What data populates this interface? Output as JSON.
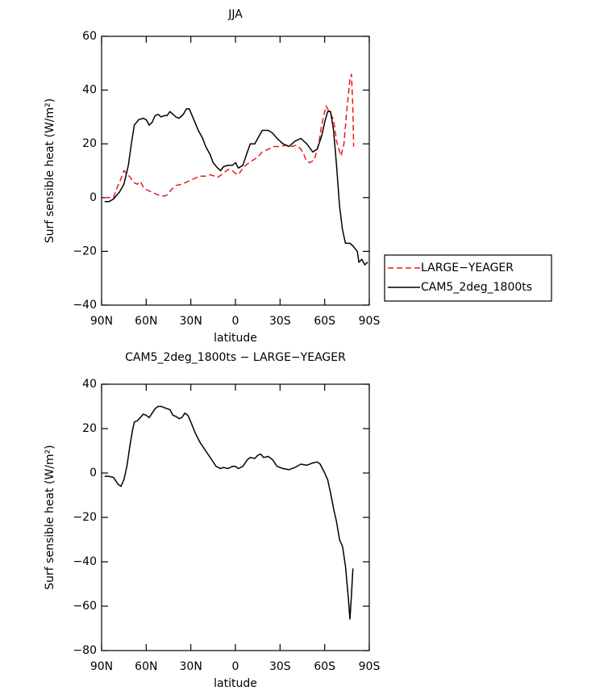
{
  "chart_data": [
    {
      "type": "line",
      "title": "JJA",
      "ylabel": "Surf sensible heat (W/m²)",
      "xlabel": "latitude",
      "xlim": [
        90,
        -90
      ],
      "xticks": [
        {
          "value": 90,
          "label": "90N"
        },
        {
          "value": 60,
          "label": "60N"
        },
        {
          "value": 30,
          "label": "30N"
        },
        0,
        {
          "value": -30,
          "label": "30S"
        },
        {
          "value": -60,
          "label": "60S"
        },
        {
          "value": -90,
          "label": "90S"
        }
      ],
      "ylim": [
        -40,
        60
      ],
      "yticks": [
        {
          "value": -40,
          "label": "−40"
        },
        {
          "value": -20,
          "label": "−20"
        },
        0,
        20,
        40,
        60
      ],
      "legend": "outside-right",
      "series": [
        {
          "name": "LARGE−YEAGER",
          "color": "#e8191c",
          "dashed": true,
          "x": [
            88,
            85,
            82,
            80,
            77,
            75,
            73,
            70,
            68,
            66,
            64,
            62,
            60,
            56,
            52,
            48,
            46,
            43,
            40,
            36,
            32,
            28,
            24,
            20,
            17,
            14,
            12,
            8,
            5,
            2,
            0,
            -2,
            -5,
            -8,
            -12,
            -15,
            -18,
            -22,
            -26,
            -30,
            -34,
            -38,
            -41,
            -44,
            -46,
            -48,
            -50,
            -53,
            -56,
            -58,
            -60,
            -61,
            -63,
            -66,
            -68,
            -71,
            -73,
            -75,
            -77,
            -78,
            -79,
            -79.5
          ],
          "values": [
            0,
            0,
            0,
            3,
            7,
            10,
            9,
            7,
            5.5,
            5,
            6,
            4,
            3,
            2,
            1,
            0.5,
            1,
            3,
            4.5,
            5,
            6,
            7,
            8,
            8,
            8.5,
            8,
            7.5,
            9,
            10.5,
            10,
            9,
            8.5,
            11,
            12.5,
            14,
            15,
            17,
            18,
            19,
            19,
            19.5,
            19,
            19.5,
            18,
            16,
            13.5,
            13,
            14,
            20,
            27,
            32,
            34,
            32,
            29,
            21,
            15.5,
            20,
            33,
            44,
            46,
            33,
            19
          ]
        },
        {
          "name": "CAM5_2deg_1800ts",
          "color": "#000000",
          "dashed": false,
          "x": [
            88,
            85,
            82,
            78,
            75,
            72,
            70,
            68,
            65,
            62,
            60,
            58,
            56,
            54,
            52,
            50,
            48,
            46,
            44,
            42,
            40,
            38,
            35,
            33,
            31,
            28,
            25,
            22,
            20,
            17,
            15,
            12,
            10,
            8,
            5,
            2,
            0,
            -2,
            -5,
            -8,
            -10,
            -13,
            -15,
            -18,
            -22,
            -25,
            -28,
            -32,
            -36,
            -40,
            -44,
            -48,
            -52,
            -55,
            -58,
            -60,
            -62,
            -64,
            -66,
            -68,
            -70,
            -72,
            -74,
            -77,
            -79,
            -82,
            -83,
            -85,
            -87,
            -89
          ],
          "values": [
            -1.5,
            -1.5,
            -0.5,
            2,
            5,
            12,
            20,
            27,
            29,
            29.5,
            29,
            27,
            28,
            30.5,
            31,
            30,
            30.5,
            30.5,
            32,
            31,
            30,
            29.5,
            31,
            33,
            33,
            29,
            25,
            22,
            19,
            16,
            13,
            11,
            10,
            11.5,
            12,
            12,
            13,
            11,
            12,
            17,
            20,
            20,
            22,
            25,
            25,
            24,
            22,
            20,
            19,
            21,
            22,
            20,
            17,
            18,
            23,
            28,
            32,
            32,
            25,
            12,
            -3,
            -12,
            -17,
            -17,
            -18,
            -20,
            -24,
            -23,
            -25,
            -24
          ]
        }
      ]
    },
    {
      "type": "line",
      "title": "CAM5_2deg_1800ts − LARGE−YEAGER",
      "ylabel": "Surf sensible heat (W/m²)",
      "xlabel": "latitude",
      "xlim": [
        90,
        -90
      ],
      "xticks": [
        {
          "value": 90,
          "label": "90N"
        },
        {
          "value": 60,
          "label": "60N"
        },
        {
          "value": 30,
          "label": "30N"
        },
        0,
        {
          "value": -30,
          "label": "30S"
        },
        {
          "value": -60,
          "label": "60S"
        },
        {
          "value": -90,
          "label": "90S"
        }
      ],
      "ylim": [
        -80,
        40
      ],
      "yticks": [
        {
          "value": -80,
          "label": "−80"
        },
        {
          "value": -60,
          "label": "−60"
        },
        {
          "value": -40,
          "label": "−40"
        },
        {
          "value": -20,
          "label": "−20"
        },
        0,
        20,
        40
      ],
      "color": "#000000",
      "x": [
        88,
        85,
        82,
        79,
        77,
        75,
        73,
        71,
        69,
        68,
        66,
        64,
        62,
        60,
        58,
        56,
        54,
        52,
        50,
        48,
        46,
        44,
        42,
        40,
        38,
        36,
        34,
        32,
        30,
        27,
        24,
        20,
        16,
        13,
        10,
        8,
        5,
        2,
        0,
        -2,
        -5,
        -8,
        -10,
        -13,
        -15,
        -17,
        -19,
        -22,
        -25,
        -28,
        -32,
        -36,
        -40,
        -44,
        -48,
        -52,
        -55,
        -57,
        -60,
        -62,
        -64,
        -66,
        -68,
        -70,
        -72,
        -74,
        -76,
        -77,
        -78,
        -79
      ],
      "values": [
        -1.5,
        -1.5,
        -2,
        -5,
        -6,
        -3,
        3,
        12,
        20,
        23,
        23.5,
        25,
        26.5,
        26,
        25,
        27,
        29,
        30,
        30,
        29.5,
        29,
        28.5,
        26,
        25.5,
        24.5,
        25,
        27,
        26,
        23,
        18,
        14,
        10,
        6,
        3,
        2,
        2.5,
        2,
        3,
        3,
        2,
        3,
        6,
        7,
        6.5,
        8,
        8.5,
        7,
        7.5,
        6,
        3,
        2,
        1.5,
        2.5,
        4,
        3.5,
        4.5,
        5,
        4,
        0,
        -3,
        -9,
        -16,
        -22,
        -30,
        -33,
        -42,
        -57,
        -66,
        -55,
        -43
      ]
    }
  ]
}
